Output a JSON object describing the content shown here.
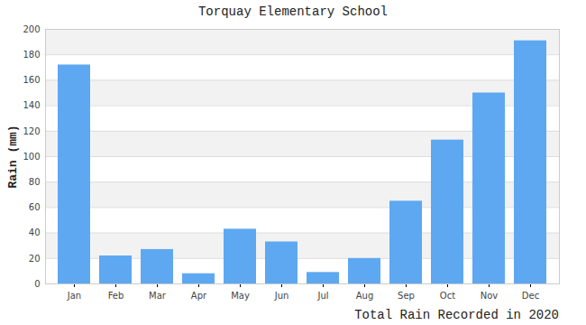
{
  "chart_data": {
    "type": "bar",
    "title": "Torquay Elementary School",
    "xlabel": "Total Rain Recorded in 2020",
    "ylabel": "Rain (mm)",
    "categories": [
      "Jan",
      "Feb",
      "Mar",
      "Apr",
      "May",
      "Jun",
      "Jul",
      "Aug",
      "Sep",
      "Oct",
      "Nov",
      "Dec"
    ],
    "values": [
      172,
      22,
      27,
      8,
      43,
      33,
      9,
      20,
      65,
      113,
      150,
      191
    ],
    "color": "#5ea8f2",
    "ylim": [
      0,
      200
    ],
    "yticks": [
      0,
      20,
      40,
      60,
      80,
      100,
      120,
      140,
      160,
      180,
      200
    ],
    "grid": true
  }
}
